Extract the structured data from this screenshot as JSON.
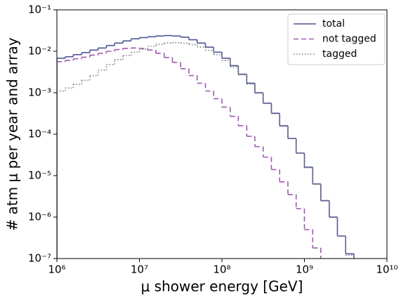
{
  "chart_data": {
    "type": "step-histogram",
    "xlabel": "μ shower energy [GeV]",
    "ylabel": "# atm μ per year and array",
    "xscale": "log",
    "yscale": "log",
    "xlim": [
      1000000.0,
      10000000000.0
    ],
    "ylim": [
      1e-07,
      0.1
    ],
    "xticks": [
      {
        "value": 1000000.0,
        "label": "10⁶"
      },
      {
        "value": 10000000.0,
        "label": "10⁷"
      },
      {
        "value": 100000000.0,
        "label": "10⁸"
      },
      {
        "value": 1000000000.0,
        "label": "10⁹"
      },
      {
        "value": 10000000000.0,
        "label": "10¹⁰"
      }
    ],
    "yticks": [
      {
        "value": 1e-07,
        "label": "10⁻⁷"
      },
      {
        "value": 1e-06,
        "label": "10⁻⁶"
      },
      {
        "value": 1e-05,
        "label": "10⁻⁵"
      },
      {
        "value": 0.0001,
        "label": "10⁻⁴"
      },
      {
        "value": 0.001,
        "label": "10⁻³"
      },
      {
        "value": 0.01,
        "label": "10⁻²"
      },
      {
        "value": 0.1,
        "label": "10⁻¹"
      }
    ],
    "legend": "upper right",
    "bins": [
      1000000.0,
      1260000.0,
      1580000.0,
      2000000.0,
      2510000.0,
      3160000.0,
      3980000.0,
      5010000.0,
      6310000.0,
      7940000.0,
      10000000.0,
      12600000.0,
      15800000.0,
      20000000.0,
      25100000.0,
      31600000.0,
      39800000.0,
      50100000.0,
      63100000.0,
      79400000.0,
      100000000.0,
      126000000.0,
      158000000.0,
      200000000.0,
      251000000.0,
      316000000.0,
      398000000.0,
      501000000.0,
      631000000.0,
      794000000.0,
      1000000000.0,
      1260000000.0,
      1580000000.0,
      2000000000.0,
      2510000000.0,
      3160000000.0,
      3980000000.0
    ],
    "series": [
      {
        "name": "total",
        "color": "#4b5394",
        "linestyle": "solid",
        "values": [
          0.0068,
          0.0074,
          0.0083,
          0.0093,
          0.0107,
          0.012,
          0.0138,
          0.0158,
          0.0178,
          0.02,
          0.0214,
          0.0224,
          0.0234,
          0.024,
          0.0234,
          0.0219,
          0.019,
          0.0158,
          0.0126,
          0.0095,
          0.0068,
          0.0045,
          0.0028,
          0.0017,
          0.001,
          0.00056,
          0.00032,
          0.00016,
          7.9e-05,
          3.5e-05,
          1.6e-05,
          6.3e-06,
          2.5e-06,
          1e-06,
          3.5e-07,
          1.3e-07
        ]
      },
      {
        "name": "not tagged",
        "color": "#a05ab0",
        "linestyle": "dashed",
        "values": [
          0.0056,
          0.006,
          0.0066,
          0.0072,
          0.0081,
          0.0089,
          0.01,
          0.011,
          0.0117,
          0.012,
          0.0117,
          0.0107,
          0.0089,
          0.0071,
          0.0054,
          0.0038,
          0.0026,
          0.0017,
          0.0011,
          0.00072,
          0.00045,
          0.00027,
          0.00016,
          8.9e-05,
          5e-05,
          2.8e-05,
          1.4e-05,
          7.1e-06,
          3.5e-06,
          1.6e-06,
          5e-07,
          1.8e-07,
          null,
          null,
          null,
          null
        ]
      },
      {
        "name": "tagged",
        "color": "#7f7f7f",
        "linestyle": "dotted",
        "values": [
          0.0011,
          0.0013,
          0.0016,
          0.002,
          0.0026,
          0.0035,
          0.0048,
          0.0063,
          0.0079,
          0.0095,
          0.0112,
          0.0132,
          0.0148,
          0.0158,
          0.0162,
          0.0158,
          0.0145,
          0.0126,
          0.0105,
          0.0083,
          0.006,
          0.0042,
          0.0027,
          0.0016,
          0.00098,
          0.00055,
          0.00031,
          0.000155,
          7.8e-05,
          3.5e-05,
          1.55e-05,
          6.2e-06,
          2.45e-06,
          9.8e-07,
          3.5e-07,
          1.2e-07
        ]
      }
    ]
  }
}
